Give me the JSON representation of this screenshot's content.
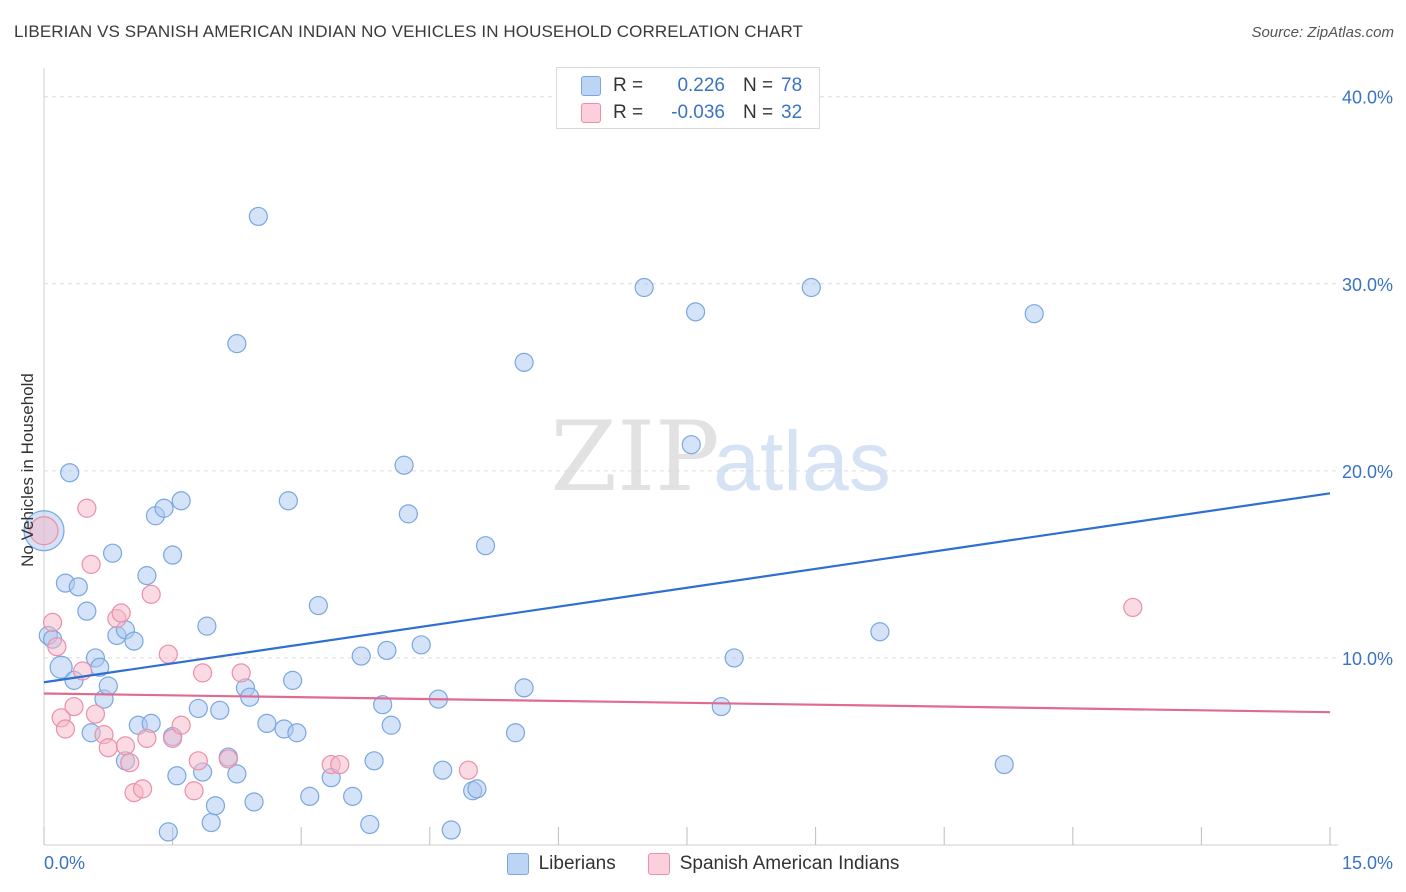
{
  "header": {
    "title": "LIBERIAN VS SPANISH AMERICAN INDIAN NO VEHICLES IN HOUSEHOLD CORRELATION CHART",
    "source": "Source: ZipAtlas.com"
  },
  "stats_box": {
    "rows": [
      {
        "r_label": "R =",
        "r_value": "0.226",
        "n_label": "N =",
        "n_value": "78",
        "color": "#a9c8f0"
      },
      {
        "r_label": "R =",
        "r_value": "-0.036",
        "n_label": "N =",
        "n_value": "32",
        "color": "#f6b8c8"
      }
    ]
  },
  "watermark": {
    "part1": "ZIP",
    "part2": "atlas"
  },
  "chart_data": {
    "type": "scatter",
    "title": "LIBERIAN VS SPANISH AMERICAN INDIAN NO VEHICLES IN HOUSEHOLD CORRELATION CHART",
    "xlabel": "",
    "ylabel": "No Vehicles in Household",
    "xlim": [
      0,
      15
    ],
    "ylim": [
      0,
      40
    ],
    "x_tick_labels": [
      {
        "value": 0,
        "label": "0.0%"
      },
      {
        "value": 15,
        "label": "15.0%"
      }
    ],
    "y_tick_labels": [
      {
        "value": 10,
        "label": "10.0%"
      },
      {
        "value": 20,
        "label": "20.0%"
      },
      {
        "value": 30,
        "label": "30.0%"
      },
      {
        "value": 40,
        "label": "40.0%"
      }
    ],
    "grid": true,
    "legend_position": "bottom-center",
    "series": [
      {
        "name": "Liberians",
        "color": "#a9c8f0",
        "stroke": "#7aa7e0",
        "trend_color": "#2f6fd1",
        "trend": {
          "x": [
            0,
            15
          ],
          "y": [
            8.7,
            18.8
          ]
        },
        "points": [
          [
            0.0,
            16.8,
            20
          ],
          [
            0.05,
            11.2,
            9
          ],
          [
            0.1,
            11.0,
            9
          ],
          [
            0.2,
            9.5,
            11
          ],
          [
            0.3,
            19.9,
            9
          ],
          [
            0.25,
            14.0,
            9
          ],
          [
            0.4,
            13.8,
            9
          ],
          [
            0.35,
            8.8,
            9
          ],
          [
            0.5,
            12.5,
            9
          ],
          [
            0.6,
            10.0,
            9
          ],
          [
            0.65,
            9.5,
            9
          ],
          [
            0.55,
            6.0,
            9
          ],
          [
            0.7,
            7.8,
            9
          ],
          [
            0.8,
            15.6,
            9
          ],
          [
            0.75,
            8.5,
            9
          ],
          [
            0.85,
            11.2,
            9
          ],
          [
            0.95,
            11.5,
            9
          ],
          [
            1.05,
            10.9,
            9
          ],
          [
            0.95,
            4.5,
            9
          ],
          [
            1.1,
            6.4,
            9
          ],
          [
            1.2,
            14.4,
            9
          ],
          [
            1.25,
            6.5,
            9
          ],
          [
            1.3,
            17.6,
            9
          ],
          [
            1.4,
            18.0,
            9
          ],
          [
            1.5,
            5.8,
            9
          ],
          [
            1.5,
            15.5,
            9
          ],
          [
            1.6,
            18.4,
            9
          ],
          [
            1.45,
            0.7,
            9
          ],
          [
            1.55,
            3.7,
            9
          ],
          [
            1.8,
            7.3,
            9
          ],
          [
            1.85,
            3.9,
            9
          ],
          [
            1.9,
            11.7,
            9
          ],
          [
            1.95,
            1.2,
            9
          ],
          [
            2.0,
            2.1,
            9
          ],
          [
            2.05,
            7.2,
            9
          ],
          [
            2.15,
            4.7,
            9
          ],
          [
            2.25,
            3.8,
            9
          ],
          [
            2.25,
            26.8,
            9
          ],
          [
            2.35,
            8.4,
            9
          ],
          [
            2.4,
            7.9,
            9
          ],
          [
            2.5,
            33.6,
            9
          ],
          [
            2.45,
            2.3,
            9
          ],
          [
            2.6,
            6.5,
            9
          ],
          [
            2.8,
            6.2,
            9
          ],
          [
            2.85,
            18.4,
            9
          ],
          [
            2.9,
            8.8,
            9
          ],
          [
            2.95,
            6.0,
            9
          ],
          [
            3.1,
            2.6,
            9
          ],
          [
            3.2,
            12.8,
            9
          ],
          [
            3.35,
            3.6,
            9
          ],
          [
            3.6,
            2.6,
            9
          ],
          [
            3.7,
            10.1,
            9
          ],
          [
            3.8,
            1.1,
            9
          ],
          [
            3.85,
            4.5,
            9
          ],
          [
            3.95,
            7.5,
            9
          ],
          [
            4.0,
            10.4,
            9
          ],
          [
            4.05,
            6.4,
            9
          ],
          [
            4.2,
            20.3,
            9
          ],
          [
            4.25,
            17.7,
            9
          ],
          [
            4.4,
            10.7,
            9
          ],
          [
            4.6,
            7.8,
            9
          ],
          [
            4.65,
            4.0,
            9
          ],
          [
            4.75,
            0.8,
            9
          ],
          [
            5.0,
            2.9,
            9
          ],
          [
            5.05,
            3.0,
            9
          ],
          [
            5.15,
            16.0,
            9
          ],
          [
            5.5,
            6.0,
            9
          ],
          [
            5.6,
            25.8,
            9
          ],
          [
            5.6,
            8.4,
            9
          ],
          [
            7.0,
            29.8,
            9
          ],
          [
            7.55,
            21.4,
            9
          ],
          [
            7.6,
            28.5,
            9
          ],
          [
            7.9,
            7.4,
            9
          ],
          [
            8.05,
            10.0,
            9
          ],
          [
            8.95,
            29.8,
            9
          ],
          [
            9.75,
            11.4,
            9
          ],
          [
            11.2,
            4.3,
            9
          ],
          [
            11.55,
            28.4,
            9
          ]
        ]
      },
      {
        "name": "Spanish American Indians",
        "color": "#f6b8c8",
        "stroke": "#ec8fa8",
        "trend_color": "#e06a92",
        "trend": {
          "x": [
            0,
            15
          ],
          "y": [
            8.1,
            7.1
          ]
        },
        "points": [
          [
            0.0,
            16.8,
            14
          ],
          [
            0.1,
            11.9,
            9
          ],
          [
            0.15,
            10.6,
            9
          ],
          [
            0.2,
            6.8,
            9
          ],
          [
            0.25,
            6.2,
            9
          ],
          [
            0.35,
            7.4,
            9
          ],
          [
            0.45,
            9.3,
            9
          ],
          [
            0.5,
            18.0,
            9
          ],
          [
            0.55,
            15.0,
            9
          ],
          [
            0.6,
            7.0,
            9
          ],
          [
            0.7,
            5.9,
            9
          ],
          [
            0.75,
            5.2,
            9
          ],
          [
            0.85,
            12.1,
            9
          ],
          [
            0.9,
            12.4,
            9
          ],
          [
            0.95,
            5.3,
            9
          ],
          [
            1.0,
            4.4,
            9
          ],
          [
            1.05,
            2.8,
            9
          ],
          [
            1.15,
            3.0,
            9
          ],
          [
            1.2,
            5.7,
            9
          ],
          [
            1.25,
            13.4,
            9
          ],
          [
            1.45,
            10.2,
            9
          ],
          [
            1.5,
            5.7,
            9
          ],
          [
            1.6,
            6.4,
            9
          ],
          [
            1.75,
            2.9,
            9
          ],
          [
            1.8,
            4.5,
            9
          ],
          [
            1.85,
            9.2,
            9
          ],
          [
            2.15,
            4.6,
            9
          ],
          [
            2.3,
            9.2,
            9
          ],
          [
            3.35,
            4.3,
            9
          ],
          [
            3.45,
            4.3,
            9
          ],
          [
            4.95,
            4.0,
            9
          ],
          [
            12.7,
            12.7,
            9
          ]
        ]
      }
    ]
  }
}
